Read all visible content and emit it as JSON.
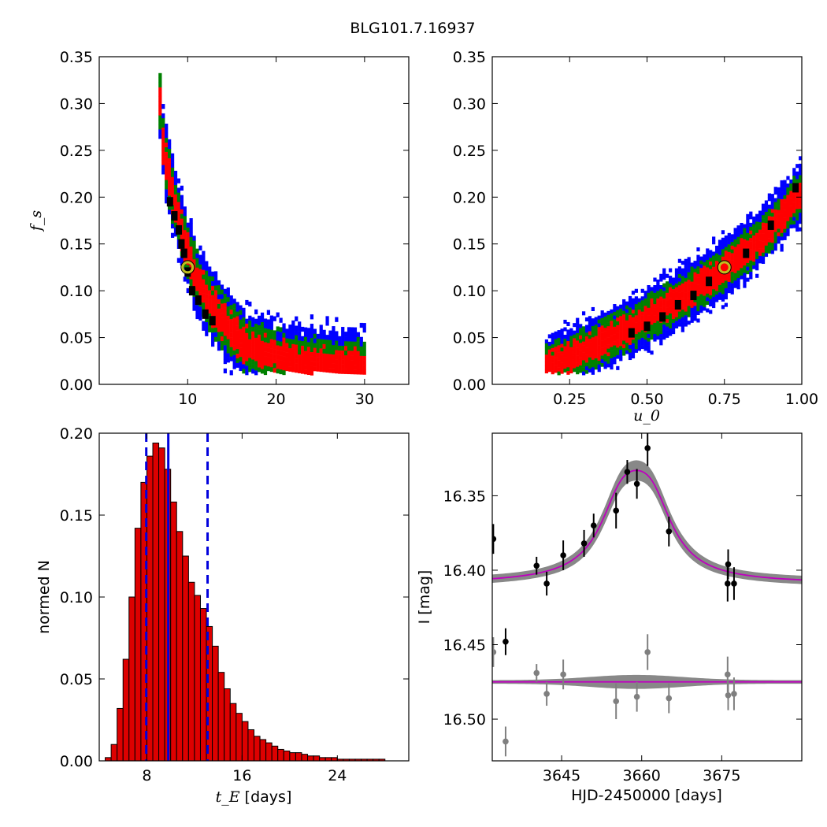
{
  "figure_title": "BLG101.7.16937",
  "colors": {
    "sigma3": "#0000ff",
    "sigma2": "#008000",
    "sigma1": "#ff0000",
    "core": "#000000",
    "best_fit_marker": "#bfbf1f",
    "hist_bar": "#dd0000",
    "vline": "#0000dd",
    "model": "#bf00bf",
    "model_band": "#888888",
    "residual_point": "#7f7f7f"
  },
  "chart_data": [
    {
      "id": "fs_vs_tE",
      "type": "heatmap",
      "xlim": [
        0,
        35
      ],
      "ylim": [
        0,
        0.35
      ],
      "xticks": [
        10,
        20,
        30
      ],
      "yticks": [
        0.0,
        0.05,
        0.1,
        0.15,
        0.2,
        0.25,
        0.3,
        0.35
      ],
      "ytick_labels": [
        "0.00",
        "0.05",
        "0.10",
        "0.15",
        "0.20",
        "0.25",
        "0.30",
        "0.35"
      ],
      "xlabel": "",
      "ylabel": "f_s",
      "best_fit": {
        "x": 10.0,
        "y": 0.125
      },
      "ridge": [
        [
          6.7,
          0.3
        ],
        [
          7.0,
          0.26
        ],
        [
          7.5,
          0.23
        ],
        [
          8.2,
          0.2
        ],
        [
          9.0,
          0.17
        ],
        [
          10.0,
          0.135
        ],
        [
          11.0,
          0.11
        ],
        [
          12.5,
          0.085
        ],
        [
          14.0,
          0.065
        ],
        [
          16.0,
          0.045
        ],
        [
          18.5,
          0.033
        ],
        [
          21.0,
          0.027
        ],
        [
          24.0,
          0.022
        ],
        [
          27.0,
          0.019
        ],
        [
          30.0,
          0.018
        ]
      ],
      "core": [
        [
          8.0,
          0.195
        ],
        [
          8.5,
          0.18
        ],
        [
          9.0,
          0.165
        ],
        [
          9.3,
          0.15
        ],
        [
          9.6,
          0.14
        ],
        [
          10.0,
          0.12
        ],
        [
          10.5,
          0.1
        ],
        [
          11.2,
          0.09
        ],
        [
          12.0,
          0.075
        ],
        [
          12.8,
          0.068
        ]
      ],
      "ridge_half_width": [
        0.007,
        0.016,
        0.026,
        0.036
      ]
    },
    {
      "id": "fs_vs_u0",
      "type": "heatmap",
      "xlim": [
        0.0,
        1.0
      ],
      "ylim": [
        0,
        0.35
      ],
      "xticks": [
        0.25,
        0.5,
        0.75,
        1.0
      ],
      "xtick_labels": [
        "0.25",
        "0.50",
        "0.75",
        "1.00"
      ],
      "yticks": [
        0.0,
        0.05,
        0.1,
        0.15,
        0.2,
        0.25,
        0.3,
        0.35
      ],
      "ytick_labels": [
        "0.00",
        "0.05",
        "0.10",
        "0.15",
        "0.20",
        "0.25",
        "0.30",
        "0.35"
      ],
      "xlabel": "u_0",
      "ylabel": "",
      "best_fit": {
        "x": 0.75,
        "y": 0.125
      },
      "ridge": [
        [
          0.17,
          0.018
        ],
        [
          0.25,
          0.03
        ],
        [
          0.35,
          0.045
        ],
        [
          0.45,
          0.062
        ],
        [
          0.55,
          0.082
        ],
        [
          0.65,
          0.102
        ],
        [
          0.75,
          0.125
        ],
        [
          0.85,
          0.152
        ],
        [
          0.93,
          0.18
        ],
        [
          1.0,
          0.21
        ]
      ],
      "core": [
        [
          0.45,
          0.055
        ],
        [
          0.5,
          0.062
        ],
        [
          0.55,
          0.072
        ],
        [
          0.6,
          0.085
        ],
        [
          0.65,
          0.095
        ],
        [
          0.7,
          0.11
        ],
        [
          0.82,
          0.14
        ],
        [
          0.9,
          0.17
        ],
        [
          0.98,
          0.21
        ]
      ],
      "ridge_half_width": [
        0.006,
        0.014,
        0.022,
        0.03
      ]
    },
    {
      "id": "tE_histogram",
      "type": "bar",
      "xlim": [
        4.0,
        30.0
      ],
      "ylim": [
        0,
        0.2
      ],
      "xticks": [
        8,
        16,
        24
      ],
      "yticks": [
        0.0,
        0.05,
        0.1,
        0.15,
        0.2
      ],
      "ytick_labels": [
        "0.00",
        "0.05",
        "0.10",
        "0.15",
        "0.20"
      ],
      "xlabel_math": "t_E",
      "xlabel_text": " [days]",
      "ylabel": "normed N",
      "bin_width": 0.5,
      "bin_starts": [
        4.5,
        5.0,
        5.5,
        6.0,
        6.5,
        7.0,
        7.5,
        8.0,
        8.5,
        9.0,
        9.5,
        10.0,
        10.5,
        11.0,
        11.5,
        12.0,
        12.5,
        13.0,
        13.5,
        14.0,
        14.5,
        15.0,
        15.5,
        16.0,
        16.5,
        17.0,
        17.5,
        18.0,
        18.5,
        19.0,
        19.5,
        20.0,
        20.5,
        21.0,
        21.5,
        22.0,
        22.5,
        23.0,
        23.5,
        24.0,
        24.5,
        25.0,
        25.5,
        26.0,
        26.5,
        27.0,
        27.5
      ],
      "values": [
        0.002,
        0.01,
        0.032,
        0.062,
        0.1,
        0.142,
        0.17,
        0.186,
        0.194,
        0.191,
        0.178,
        0.158,
        0.14,
        0.125,
        0.109,
        0.101,
        0.093,
        0.082,
        0.07,
        0.054,
        0.044,
        0.035,
        0.029,
        0.024,
        0.019,
        0.015,
        0.013,
        0.011,
        0.009,
        0.007,
        0.006,
        0.005,
        0.005,
        0.004,
        0.003,
        0.003,
        0.002,
        0.002,
        0.002,
        0.001,
        0.001,
        0.001,
        0.001,
        0.001,
        0.001,
        0.001,
        0.001
      ],
      "vlines": [
        {
          "x": 7.95,
          "style": "dashed"
        },
        {
          "x": 9.8,
          "style": "solid"
        },
        {
          "x": 13.1,
          "style": "dashed"
        }
      ]
    },
    {
      "id": "light_curve",
      "type": "scatter",
      "xlim": [
        3632,
        3690
      ],
      "ylim": [
        16.528,
        16.308
      ],
      "y_inverted": true,
      "xticks": [
        3645,
        3660,
        3675
      ],
      "yticks": [
        16.35,
        16.4,
        16.45,
        16.5
      ],
      "ytick_labels": [
        "16.35",
        "16.40",
        "16.45",
        "16.50"
      ],
      "xlabel": "HJD-2450000 [days]",
      "ylabel": "I [mag]",
      "model": {
        "baseline": 16.409,
        "peak": 16.333,
        "t0": 3659.0,
        "width": 5.0,
        "residual_level": 16.475
      },
      "data_points": [
        {
          "x": 3632.2,
          "y": 16.379,
          "err": 0.01
        },
        {
          "x": 3640.3,
          "y": 16.397,
          "err": 0.006
        },
        {
          "x": 3642.2,
          "y": 16.409,
          "err": 0.008
        },
        {
          "x": 3645.3,
          "y": 16.39,
          "err": 0.01
        },
        {
          "x": 3649.2,
          "y": 16.382,
          "err": 0.009
        },
        {
          "x": 3651.0,
          "y": 16.37,
          "err": 0.008
        },
        {
          "x": 3655.2,
          "y": 16.36,
          "err": 0.012
        },
        {
          "x": 3657.3,
          "y": 16.334,
          "err": 0.008
        },
        {
          "x": 3659.1,
          "y": 16.342,
          "err": 0.01
        },
        {
          "x": 3661.1,
          "y": 16.318,
          "err": 0.012
        },
        {
          "x": 3665.1,
          "y": 16.374,
          "err": 0.01
        },
        {
          "x": 3676.1,
          "y": 16.409,
          "err": 0.012
        },
        {
          "x": 3676.2,
          "y": 16.396,
          "err": 0.01
        },
        {
          "x": 3677.3,
          "y": 16.409,
          "err": 0.011
        },
        {
          "x": 3634.5,
          "y": 16.448,
          "err": 0.009
        }
      ],
      "residual_points": [
        {
          "x": 3632.2,
          "y": 16.455,
          "err": 0.01
        },
        {
          "x": 3634.5,
          "y": 16.515,
          "err": 0.01
        },
        {
          "x": 3640.3,
          "y": 16.469,
          "err": 0.006
        },
        {
          "x": 3642.2,
          "y": 16.483,
          "err": 0.008
        },
        {
          "x": 3645.3,
          "y": 16.47,
          "err": 0.01
        },
        {
          "x": 3655.2,
          "y": 16.488,
          "err": 0.012
        },
        {
          "x": 3659.1,
          "y": 16.485,
          "err": 0.01
        },
        {
          "x": 3661.1,
          "y": 16.455,
          "err": 0.012
        },
        {
          "x": 3665.1,
          "y": 16.486,
          "err": 0.01
        },
        {
          "x": 3676.1,
          "y": 16.47,
          "err": 0.012
        },
        {
          "x": 3676.2,
          "y": 16.484,
          "err": 0.01
        },
        {
          "x": 3677.3,
          "y": 16.483,
          "err": 0.011
        }
      ]
    }
  ]
}
